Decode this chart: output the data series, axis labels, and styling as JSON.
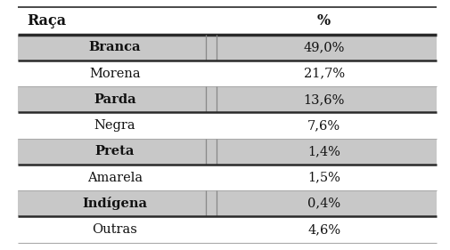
{
  "header": [
    "Raça",
    "%"
  ],
  "rows": [
    {
      "label": "Branca",
      "value": "49,0%",
      "bold": true,
      "bg": "#c8c8c8"
    },
    {
      "label": "Morena",
      "value": "21,7%",
      "bold": false,
      "bg": "#ffffff"
    },
    {
      "label": "Parda",
      "value": "13,6%",
      "bold": true,
      "bg": "#c8c8c8"
    },
    {
      "label": "Negra",
      "value": "7,6%",
      "bold": false,
      "bg": "#ffffff"
    },
    {
      "label": "Preta",
      "value": "1,4%",
      "bold": true,
      "bg": "#c8c8c8"
    },
    {
      "label": "Amarela",
      "value": "1,5%",
      "bold": false,
      "bg": "#ffffff"
    },
    {
      "label": "Indígena",
      "value": "0,4%",
      "bold": true,
      "bg": "#c8c8c8"
    },
    {
      "label": "Outras",
      "value": "4,6%",
      "bold": false,
      "bg": "#ffffff"
    }
  ],
  "col_split": 0.47,
  "header_line_color": "#2a2a2a",
  "row_line_color": "#aaaaaa",
  "bold_row_line_color": "#2a2a2a",
  "text_color": "#111111",
  "font_size": 10.5,
  "header_font_size": 11.5
}
